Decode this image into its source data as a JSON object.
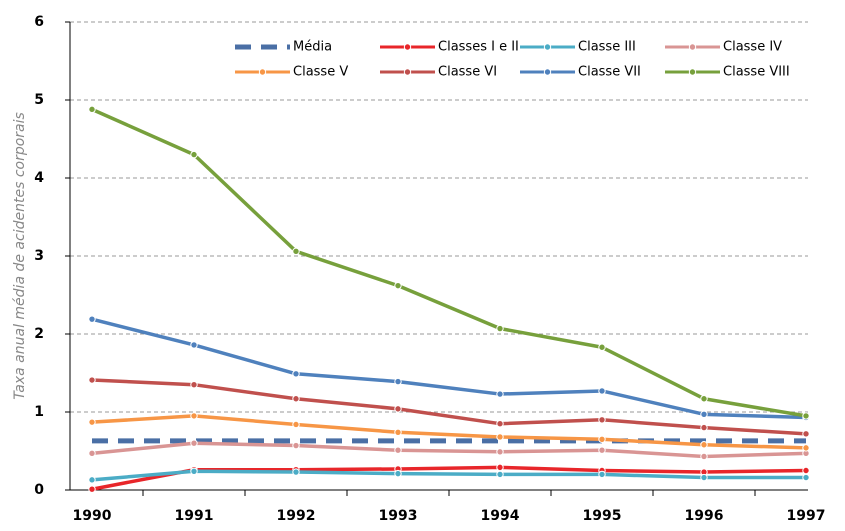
{
  "chart_data": {
    "type": "line",
    "y_label": "Taxa anual média de acidentes corporais",
    "categories": [
      "1990",
      "1991",
      "1992",
      "1993",
      "1994",
      "1995",
      "1996",
      "1997"
    ],
    "ylim": [
      0,
      6
    ],
    "yticks": [
      0,
      1,
      2,
      3,
      4,
      5,
      6
    ],
    "grid": true,
    "series": [
      {
        "name": "Média",
        "color": "#4a6fa5",
        "line_style": "dashed",
        "markers": false,
        "values": [
          0.63,
          0.63,
          0.63,
          0.63,
          0.63,
          0.63,
          0.63,
          0.63
        ]
      },
      {
        "name": "Classes I e II",
        "color": "#e8262a",
        "line_style": "solid",
        "markers": true,
        "values": [
          0.01,
          0.26,
          0.26,
          0.27,
          0.29,
          0.25,
          0.23,
          0.25
        ]
      },
      {
        "name": "Classe III",
        "color": "#4bacc6",
        "line_style": "solid",
        "markers": true,
        "values": [
          0.13,
          0.24,
          0.23,
          0.21,
          0.2,
          0.2,
          0.16,
          0.16
        ]
      },
      {
        "name": "Classe IV",
        "color": "#d99594",
        "line_style": "solid",
        "markers": true,
        "values": [
          0.47,
          0.6,
          0.57,
          0.51,
          0.49,
          0.51,
          0.43,
          0.47
        ]
      },
      {
        "name": "Classe V",
        "color": "#f79646",
        "line_style": "solid",
        "markers": true,
        "values": [
          0.87,
          0.95,
          0.84,
          0.74,
          0.68,
          0.65,
          0.58,
          0.54
        ]
      },
      {
        "name": "Classe VI",
        "color": "#c0504d",
        "line_style": "solid",
        "markers": true,
        "values": [
          1.41,
          1.35,
          1.17,
          1.04,
          0.85,
          0.9,
          0.8,
          0.72
        ]
      },
      {
        "name": "Classe VII",
        "color": "#4f81bd",
        "line_style": "solid",
        "markers": true,
        "values": [
          2.19,
          1.86,
          1.49,
          1.39,
          1.23,
          1.27,
          0.97,
          0.93
        ]
      },
      {
        "name": "Classe VIII",
        "color": "#77a03c",
        "line_style": "solid",
        "markers": true,
        "values": [
          4.88,
          4.3,
          3.06,
          2.62,
          2.07,
          1.83,
          1.17,
          0.95
        ]
      }
    ]
  }
}
